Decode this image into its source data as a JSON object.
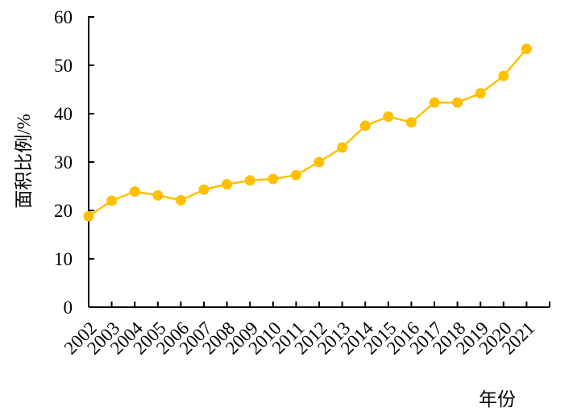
{
  "chart_data": {
    "type": "line",
    "x": [
      "2002",
      "2003",
      "2004",
      "2005",
      "2006",
      "2007",
      "2008",
      "2009",
      "2010",
      "2011",
      "2012",
      "2013",
      "2014",
      "2015",
      "2016",
      "2017",
      "2018",
      "2019",
      "2020",
      "2021"
    ],
    "series": [
      {
        "values": [
          18.8,
          22.0,
          23.9,
          23.1,
          22.1,
          24.3,
          25.4,
          26.2,
          26.5,
          27.3,
          30.0,
          33.0,
          37.5,
          39.4,
          38.2,
          42.3,
          42.3,
          44.2,
          47.8,
          53.4
        ]
      }
    ],
    "title": "",
    "xlabel": "年份",
    "ylabel": "面积比例/%",
    "ylim": [
      0,
      60
    ],
    "yticks": [
      0,
      10,
      20,
      30,
      40,
      50,
      60
    ],
    "grid": false,
    "legend": "none",
    "series_color": "#FFC000"
  }
}
